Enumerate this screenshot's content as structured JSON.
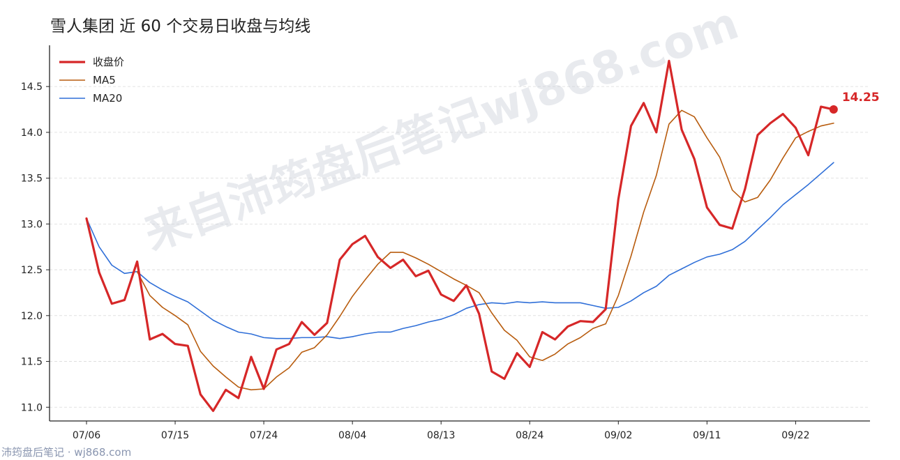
{
  "chart_data": {
    "type": "line",
    "title": "雪人集团 近 60 个交易日收盘与均线",
    "xlabel": "",
    "ylabel": "",
    "ylim": [
      10.85,
      14.95
    ],
    "yticks": [
      "11.0",
      "11.5",
      "12.0",
      "12.5",
      "13.0",
      "13.5",
      "14.0",
      "14.5"
    ],
    "xticks": [
      {
        "index": 0,
        "label": "07/06"
      },
      {
        "index": 7,
        "label": "07/15"
      },
      {
        "index": 14,
        "label": "07/24"
      },
      {
        "index": 21,
        "label": "08/04"
      },
      {
        "index": 28,
        "label": "08/13"
      },
      {
        "index": 35,
        "label": "08/24"
      },
      {
        "index": 42,
        "label": "09/02"
      },
      {
        "index": 49,
        "label": "09/11"
      },
      {
        "index": 56,
        "label": "09/22"
      }
    ],
    "grid": true,
    "legend_position": "top-left",
    "last_point_label": "14.25",
    "series": [
      {
        "name": "收盘价",
        "color": "#d62728",
        "values": [
          13.06,
          12.47,
          12.13,
          12.17,
          12.59,
          11.74,
          11.8,
          11.69,
          11.67,
          11.14,
          10.96,
          11.19,
          11.1,
          11.55,
          11.2,
          11.63,
          11.69,
          11.93,
          11.79,
          11.92,
          12.61,
          12.78,
          12.87,
          12.64,
          12.52,
          12.61,
          12.43,
          12.49,
          12.23,
          12.16,
          12.33,
          12.02,
          11.39,
          11.31,
          11.59,
          11.44,
          11.82,
          11.74,
          11.88,
          11.94,
          11.93,
          12.07,
          13.27,
          14.07,
          14.32,
          14.0,
          14.78,
          14.03,
          13.71,
          13.18,
          12.99,
          12.95,
          13.38,
          13.97,
          14.1,
          14.2,
          14.05,
          13.75,
          14.28,
          14.25
        ]
      },
      {
        "name": "MA5",
        "color": "#b85c0e",
        "values": [
          null,
          null,
          null,
          null,
          12.48,
          12.22,
          12.09,
          12.0,
          11.9,
          11.61,
          11.45,
          11.33,
          11.22,
          11.19,
          11.2,
          11.33,
          11.43,
          11.6,
          11.65,
          11.79,
          11.99,
          12.21,
          12.39,
          12.56,
          12.69,
          12.69,
          12.63,
          12.56,
          12.48,
          12.4,
          12.33,
          12.25,
          12.03,
          11.84,
          11.73,
          11.55,
          11.51,
          11.58,
          11.69,
          11.76,
          11.86,
          11.91,
          12.22,
          12.65,
          13.13,
          13.53,
          14.09,
          14.24,
          14.17,
          13.94,
          13.73,
          13.37,
          13.24,
          13.29,
          13.48,
          13.72,
          13.94,
          14.01,
          14.07,
          14.1
        ]
      },
      {
        "name": "MA20",
        "color": "#2f6fd8",
        "values": [
          13.06,
          12.75,
          12.55,
          12.46,
          12.48,
          12.36,
          12.28,
          12.21,
          12.15,
          12.05,
          11.95,
          11.88,
          11.82,
          11.8,
          11.76,
          11.75,
          11.75,
          11.76,
          11.76,
          11.77,
          11.75,
          11.77,
          11.8,
          11.82,
          11.82,
          11.86,
          11.89,
          11.93,
          11.96,
          12.01,
          12.08,
          12.12,
          12.14,
          12.13,
          12.15,
          12.14,
          12.15,
          12.14,
          12.14,
          12.14,
          12.11,
          12.08,
          12.09,
          12.16,
          12.25,
          12.32,
          12.44,
          12.51,
          12.58,
          12.64,
          12.67,
          12.72,
          12.81,
          12.94,
          13.07,
          13.21,
          13.32,
          13.43,
          13.55,
          13.67
        ]
      }
    ]
  },
  "watermark": {
    "center_text": "来自沛筠盘后笔记wj868.com",
    "footer_text": "沛筠盘后笔记 · wj868.com"
  }
}
